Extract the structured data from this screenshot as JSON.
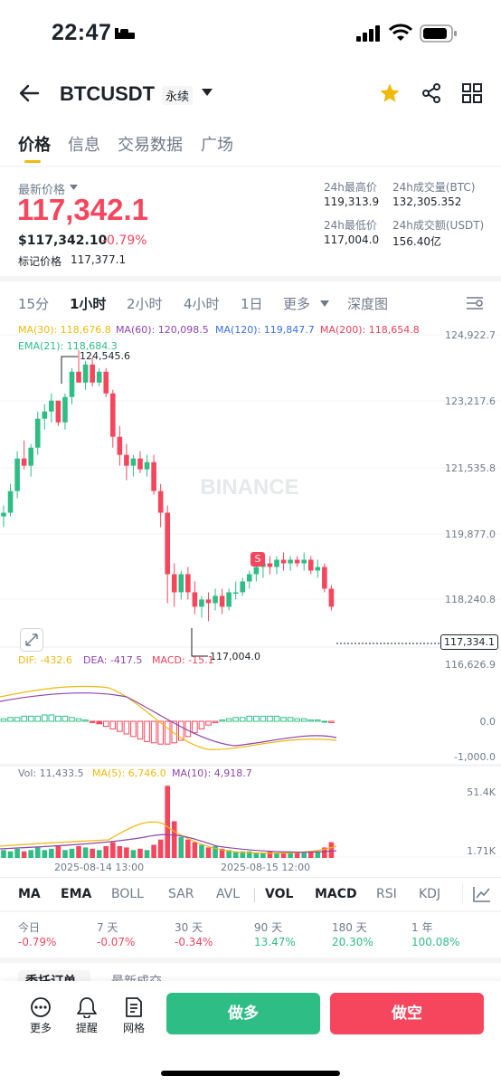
{
  "status": {
    "time": "22:47"
  },
  "header": {
    "pair": "BTCUSDT",
    "badge": "永续"
  },
  "tabs": [
    "价格",
    "信息",
    "交易数据",
    "广场"
  ],
  "price": {
    "latest_label": "最新价格",
    "latest": "117,342.1",
    "usd": "$117,342.10",
    "change": "-0.79%",
    "mark_label": "标记价格",
    "mark": "117,377.1"
  },
  "stats": {
    "high_label": "24h最高价",
    "high": "119,313.9",
    "vol_btc_label": "24h成交量(BTC)",
    "vol_btc": "132,305.352",
    "low_label": "24h最低价",
    "low": "117,004.0",
    "vol_usdt_label": "24h成交额(USDT)",
    "vol_usdt": "156.40亿"
  },
  "timeframes": [
    "15分",
    "1小时",
    "2小时",
    "4小时",
    "1日",
    "更多",
    "深度图"
  ],
  "ma_legend": {
    "ma30": "MA(30): 118,676.8",
    "ma60": "MA(60): 120,098.5",
    "ma120": "MA(120): 119,847.7",
    "ma200": "MA(200): 118,654.8",
    "ema21": "EMA(21): 118,684.3"
  },
  "price_axis": [
    "124,922.7",
    "123,217.6",
    "121,535.8",
    "119,877.0",
    "118,240.8",
    "116,626.9"
  ],
  "current_tag": "117,334.1",
  "high_marker": "124,545.6",
  "low_marker": "117,004.0",
  "signal_badge": "S",
  "watermark": "BINANCE",
  "macd_legend": {
    "dif": "DIF: -432.6",
    "dea": "DEA: -417.5",
    "macd": "MACD: -15.1"
  },
  "macd_axis": [
    "0.0",
    "-1,000.0"
  ],
  "vol_legend": {
    "vol": "Vol: 11,433.5",
    "ma5": "MA(5): 6,746.0",
    "ma10": "MA(10): 4,918.7"
  },
  "vol_axis": [
    "51.4K",
    "1.71K"
  ],
  "dates": [
    "2025-08-14 13:00",
    "2025-08-15 12:00"
  ],
  "indicators": [
    "MA",
    "EMA",
    "BOLL",
    "SAR",
    "AVL",
    "VOL",
    "MACD",
    "RSI",
    "KDJ"
  ],
  "performance": [
    {
      "label": "今日",
      "value": "-0.79%"
    },
    {
      "label": "7 天",
      "value": "-0.07%"
    },
    {
      "label": "30 天",
      "value": "-0.34%"
    },
    {
      "label": "90 天",
      "value": "13.47%"
    },
    {
      "label": "180 天",
      "value": "20.30%"
    },
    {
      "label": "1 年",
      "value": "100.08%"
    }
  ],
  "bottom_tabs": [
    "委托订单",
    "最新成交"
  ],
  "bottom": {
    "more": "更多",
    "alert": "提醒",
    "grid": "网格",
    "long": "做多",
    "short": "做空"
  },
  "colors": {
    "up": "#2ebd85",
    "down": "#f6465d",
    "accent": "#f0b90b"
  }
}
